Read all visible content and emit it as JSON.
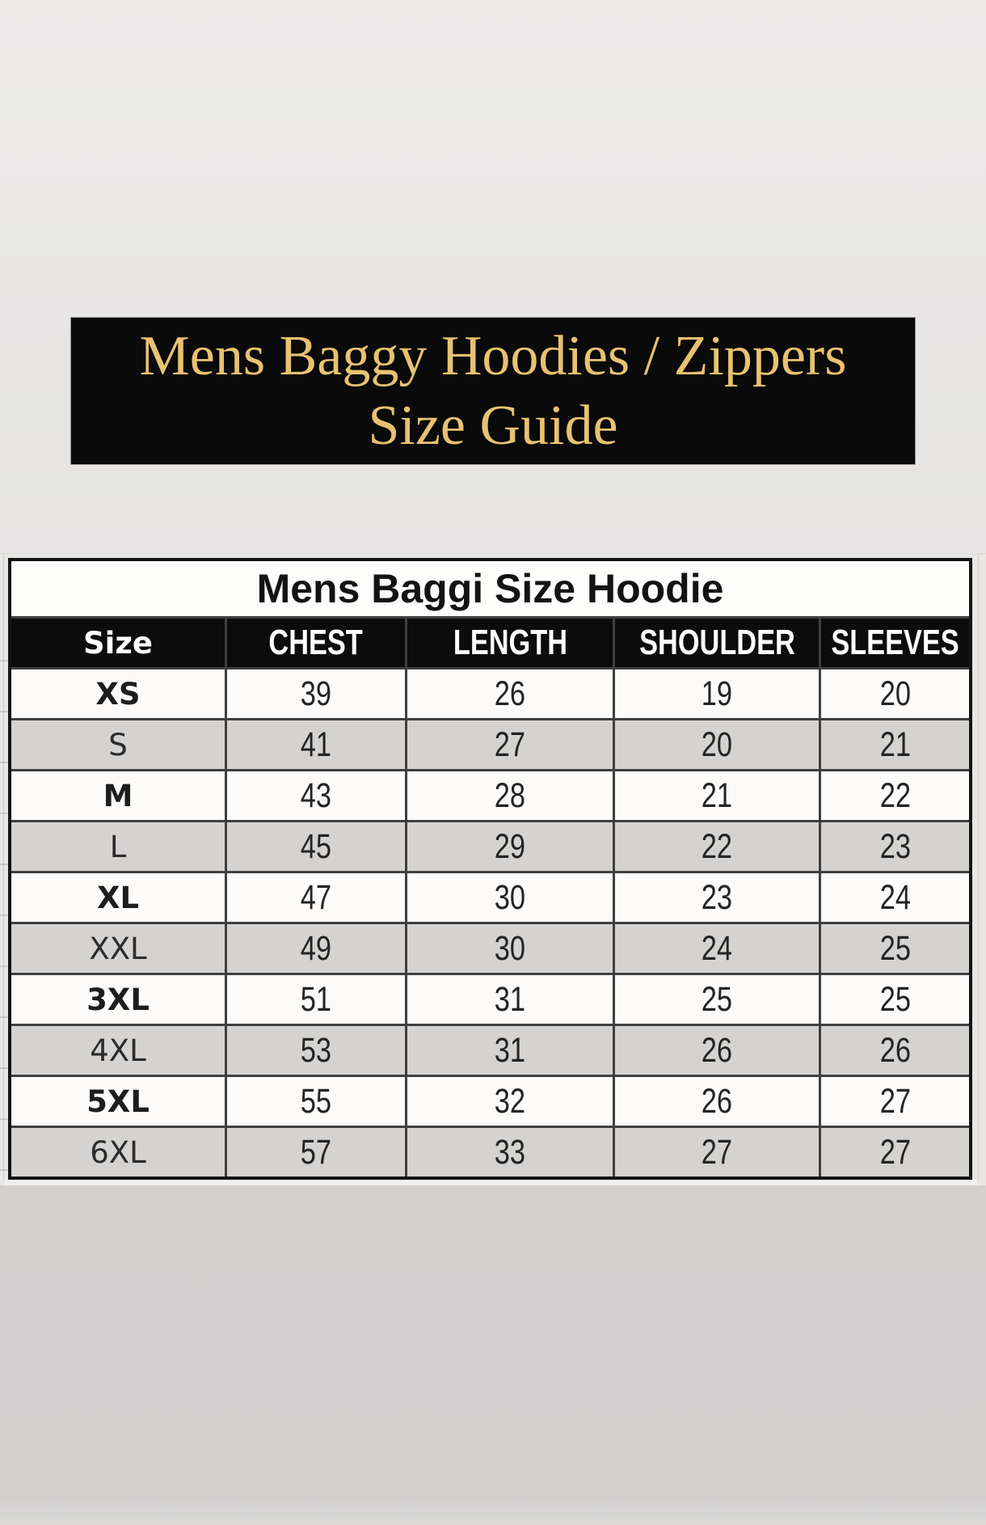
{
  "banner": {
    "line1": "Mens Baggy Hoodies / Zippers",
    "line2": "Size Guide"
  },
  "chart_data": {
    "type": "table",
    "title": "Mens Baggi Size Hoodie",
    "columns": [
      "Size",
      "CHEST",
      "LENGTH",
      "SHOULDER",
      "SLEEVES"
    ],
    "rows": [
      [
        "XS",
        39,
        26,
        19,
        20
      ],
      [
        "S",
        41,
        27,
        20,
        21
      ],
      [
        "M",
        43,
        28,
        21,
        22
      ],
      [
        "L",
        45,
        29,
        22,
        23
      ],
      [
        "XL",
        47,
        30,
        23,
        24
      ],
      [
        "XXL",
        49,
        30,
        24,
        25
      ],
      [
        "3XL",
        51,
        31,
        25,
        25
      ],
      [
        "4XL",
        53,
        31,
        26,
        26
      ],
      [
        "5XL",
        55,
        32,
        26,
        27
      ],
      [
        "6XL",
        57,
        33,
        27,
        27
      ]
    ]
  },
  "colors": {
    "banner_bg": "#0a0a0a",
    "banner_text": "#e8c271",
    "header_bg": "#0c0c0c",
    "header_text": "#ffffff",
    "row_white": "#fcfbfa",
    "row_gray": "#d5d3d1",
    "grid_line": "#3f3f3f",
    "bg_top": "#e8e7e6",
    "bg_bottom": "#d2d1d0"
  }
}
